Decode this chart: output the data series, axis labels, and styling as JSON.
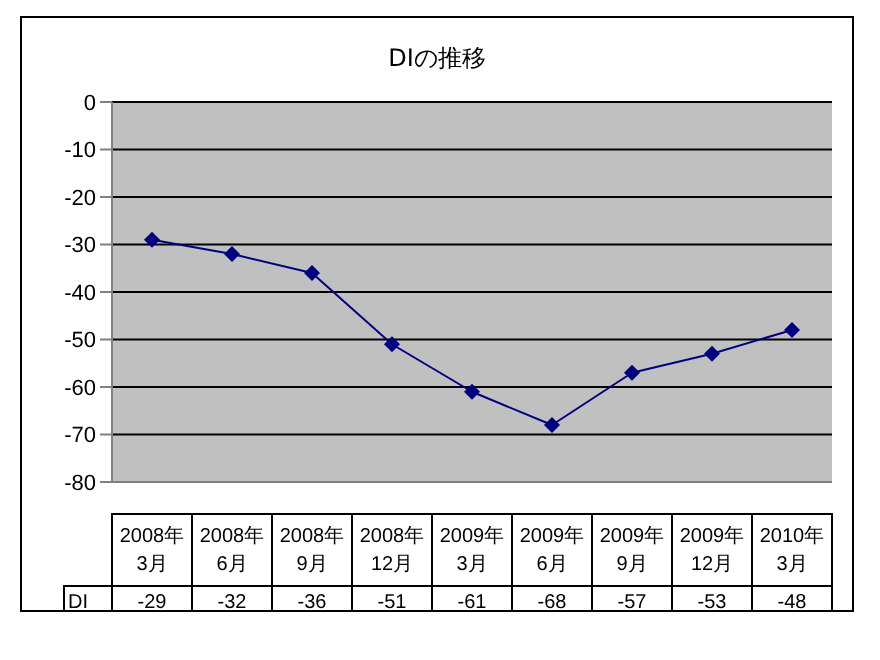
{
  "chart_data": {
    "type": "line",
    "title": "DIの推移",
    "categories": [
      "2008年 3月",
      "2008年 6月",
      "2008年 9月",
      "2008年 12月",
      "2009年 3月",
      "2009年 6月",
      "2009年 9月",
      "2009年 12月",
      "2010年 3月"
    ],
    "series": [
      {
        "name": "DI",
        "color": "#000080",
        "values": [
          -29,
          -32,
          -36,
          -51,
          -61,
          -68,
          -57,
          -53,
          -48
        ]
      }
    ],
    "ylim": [
      -80,
      0
    ],
    "yticks": [
      -80,
      -70,
      -60,
      -50,
      -40,
      -30,
      -20,
      -10,
      0
    ],
    "grid": "y",
    "marker": "diamond",
    "data_labels": true
  }
}
